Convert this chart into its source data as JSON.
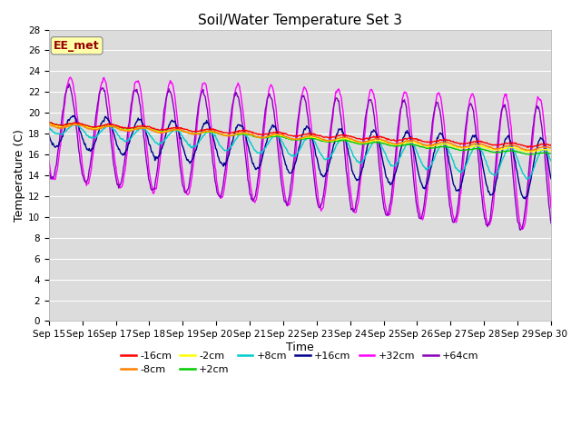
{
  "title": "Soil/Water Temperature Set 3",
  "xlabel": "Time",
  "ylabel": "Temperature (C)",
  "ylim": [
    0,
    28
  ],
  "xlim": [
    0,
    15
  ],
  "x_tick_labels": [
    "Sep 15",
    "Sep 16",
    "Sep 17",
    "Sep 18",
    "Sep 19",
    "Sep 20",
    "Sep 21",
    "Sep 22",
    "Sep 23",
    "Sep 24",
    "Sep 25",
    "Sep 26",
    "Sep 27",
    "Sep 28",
    "Sep 29",
    "Sep 30"
  ],
  "legend_title": "EE_met",
  "plot_bg_color": "#dcdcdc",
  "fig_bg_color": "#ffffff",
  "series": [
    {
      "label": "-16cm",
      "color": "#ff0000"
    },
    {
      "label": "-8cm",
      "color": "#ff8000"
    },
    {
      "label": "-2cm",
      "color": "#ffff00"
    },
    {
      "label": "+2cm",
      "color": "#00cc00"
    },
    {
      "label": "+8cm",
      "color": "#00cccc"
    },
    {
      "label": "+16cm",
      "color": "#000090"
    },
    {
      "label": "+32cm",
      "color": "#ff00ff"
    },
    {
      "label": "+64cm",
      "color": "#8800bb"
    }
  ],
  "grid_color": "#ffffff",
  "title_fontsize": 11,
  "axis_fontsize": 9,
  "tick_fontsize": 7.5,
  "legend_fontsize": 8
}
